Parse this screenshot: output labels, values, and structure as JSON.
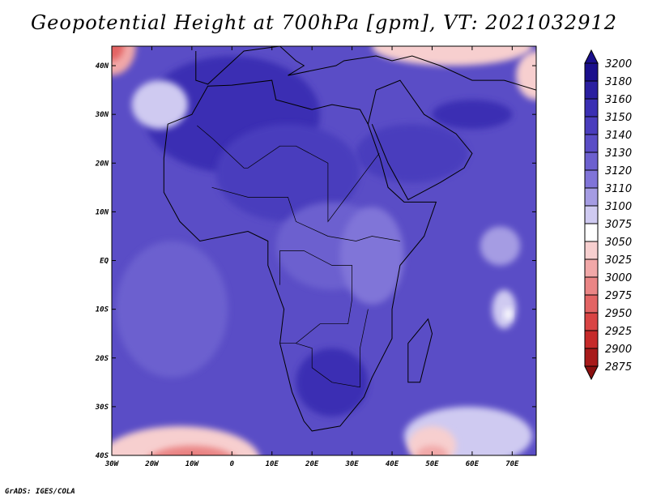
{
  "title": "Geopotential Height at 700hPa [gpm], VT: 2021032912",
  "footer": "GrADS: IGES/COLA",
  "map": {
    "lon_range": [
      -30,
      76
    ],
    "lat_range": [
      -40,
      44
    ],
    "lon_ticks": [
      {
        "value": -30,
        "label": "30W"
      },
      {
        "value": -20,
        "label": "20W"
      },
      {
        "value": -10,
        "label": "10W"
      },
      {
        "value": 0,
        "label": "0"
      },
      {
        "value": 10,
        "label": "10E"
      },
      {
        "value": 20,
        "label": "20E"
      },
      {
        "value": 30,
        "label": "30E"
      },
      {
        "value": 40,
        "label": "40E"
      },
      {
        "value": 50,
        "label": "50E"
      },
      {
        "value": 60,
        "label": "60E"
      },
      {
        "value": 70,
        "label": "70E"
      }
    ],
    "lat_ticks": [
      {
        "value": 40,
        "label": "40N"
      },
      {
        "value": 30,
        "label": "30N"
      },
      {
        "value": 20,
        "label": "20N"
      },
      {
        "value": 10,
        "label": "10N"
      },
      {
        "value": 0,
        "label": "EQ"
      },
      {
        "value": -10,
        "label": "10S"
      },
      {
        "value": -20,
        "label": "20S"
      },
      {
        "value": -30,
        "label": "30S"
      },
      {
        "value": -40,
        "label": "40S"
      }
    ],
    "field_blobs": [
      {
        "lon": 4,
        "lat": 33,
        "rx": 10,
        "ry": 7,
        "level": 3180
      },
      {
        "lon": 0,
        "lat": 30,
        "rx": 22,
        "ry": 12,
        "level": 3160
      },
      {
        "lon": 25,
        "lat": -25,
        "rx": 9,
        "ry": 7,
        "level": 3160
      },
      {
        "lon": 45,
        "lat": 22,
        "rx": 14,
        "ry": 6,
        "level": 3150
      },
      {
        "lon": 14,
        "lat": 18,
        "rx": 18,
        "ry": 10,
        "level": 3150
      },
      {
        "lon": 60,
        "lat": 30,
        "rx": 10,
        "ry": 3,
        "level": 3160
      },
      {
        "lon": -15,
        "lat": -10,
        "rx": 14,
        "ry": 14,
        "level": 3130
      },
      {
        "lon": 25,
        "lat": 3,
        "rx": 14,
        "ry": 9,
        "level": 3130
      },
      {
        "lon": 35,
        "lat": 1,
        "rx": 8,
        "ry": 10,
        "level": 3120
      },
      {
        "lon": 67,
        "lat": 3,
        "rx": 5,
        "ry": 4,
        "level": 3110
      },
      {
        "lon": 68,
        "lat": -10,
        "rx": 3,
        "ry": 4,
        "level": 3100
      },
      {
        "lon": 69,
        "lat": -11,
        "rx": 1,
        "ry": 1.2,
        "level": 3075
      },
      {
        "lon": 59,
        "lat": -36,
        "rx": 16,
        "ry": 6,
        "level": 3100
      },
      {
        "lon": 50,
        "lat": -38,
        "rx": 6,
        "ry": 4,
        "level": 3050
      },
      {
        "lon": 50,
        "lat": -40,
        "rx": 4,
        "ry": 2,
        "level": 3025
      },
      {
        "lon": -18,
        "lat": 32,
        "rx": 7,
        "ry": 5,
        "level": 3100
      },
      {
        "lon": -13,
        "lat": -41,
        "rx": 20,
        "ry": 7,
        "level": 3050
      },
      {
        "lon": -10,
        "lat": -42,
        "rx": 12,
        "ry": 4,
        "level": 3000
      },
      {
        "lon": -10,
        "lat": -43,
        "rx": 6,
        "ry": 2.5,
        "level": 2950
      },
      {
        "lon": -30,
        "lat": 44,
        "rx": 6,
        "ry": 6,
        "level": 3025
      },
      {
        "lon": -30,
        "lat": 44,
        "rx": 3,
        "ry": 3,
        "level": 2975
      },
      {
        "lon": 55,
        "lat": 44,
        "rx": 20,
        "ry": 4,
        "level": 3050
      },
      {
        "lon": 76,
        "lat": 38,
        "rx": 5,
        "ry": 5,
        "level": 3050
      }
    ]
  },
  "colorbar": {
    "levels": [
      3200,
      3180,
      3160,
      3150,
      3140,
      3130,
      3120,
      3110,
      3100,
      3075,
      3050,
      3025,
      3000,
      2975,
      2950,
      2925,
      2900,
      2875
    ],
    "colors": [
      "#1a0f8c",
      "#2a1fa0",
      "#3a2fb3",
      "#4a3dbd",
      "#5a4dc6",
      "#6c60cf",
      "#8074d8",
      "#a59ce3",
      "#cfcaf1",
      "#ffffff",
      "#f7cfcf",
      "#f1a8a8",
      "#ea8585",
      "#e36464",
      "#d94444",
      "#c62a2a",
      "#a81a1a",
      "#8a1010"
    ]
  }
}
